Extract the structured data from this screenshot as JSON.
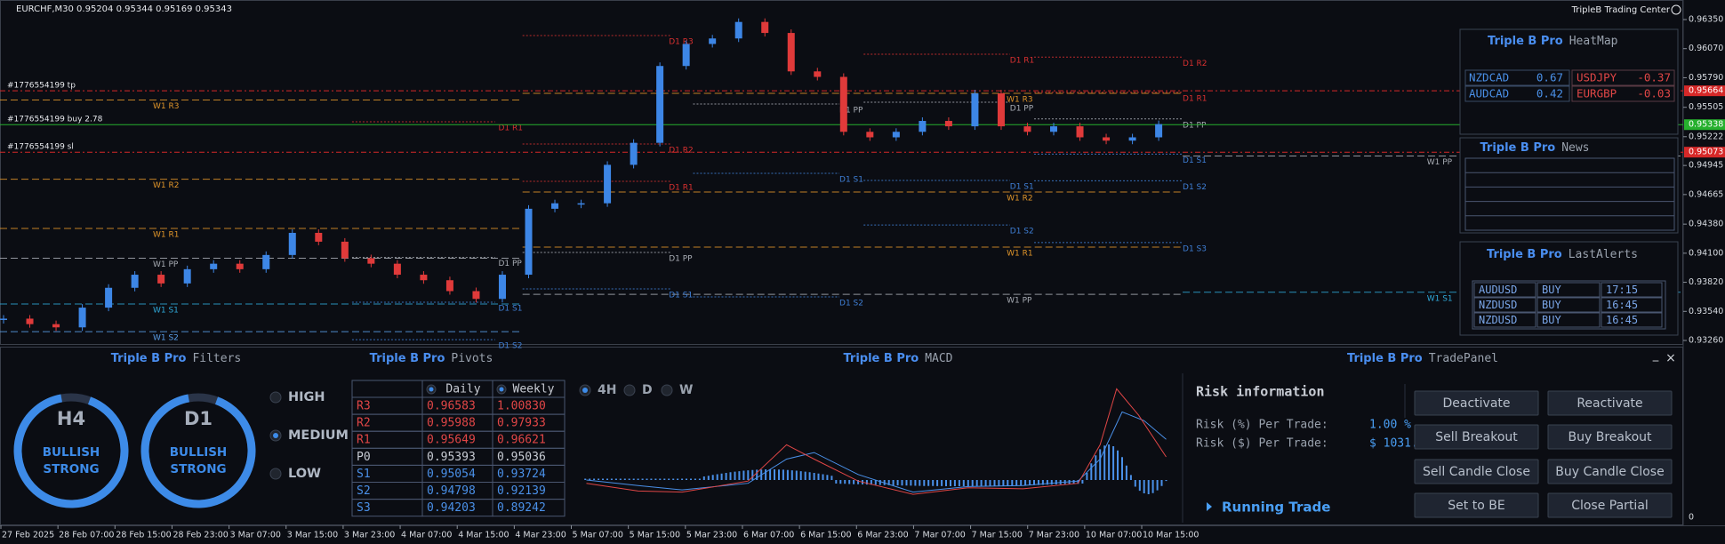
{
  "header": {
    "symbol_info": "EURCHF,M30  0.95204 0.95344 0.95169 0.95343",
    "app_title": "TripleB Trading Center"
  },
  "chart_data": {
    "type": "candlestick",
    "closes": [
      0.9347,
      0.93417,
      0.93386,
      0.93576,
      0.93767,
      0.93893,
      0.93809,
      0.93946,
      0.93999,
      0.93946,
      0.94083,
      0.94296,
      0.94211,
      0.94052,
      0.93999,
      0.93893,
      0.9384,
      0.93735,
      0.9366,
      0.93893,
      0.94528,
      0.94581,
      0.94581,
      0.94951,
      0.95163,
      0.95903,
      0.96115,
      0.96168,
      0.96327,
      0.96221,
      0.95851,
      0.95798,
      0.95269,
      0.95216,
      0.95269,
      0.95374,
      0.95322,
      0.95639,
      0.95322,
      0.95269,
      0.95322,
      0.95216,
      0.95184,
      0.95216,
      0.95343
    ],
    "up_color": "#3d86e6",
    "down_color": "#e03a3a",
    "ylim": [
      0.9326,
      0.9635
    ],
    "yticks": [
      {
        "value": 0.9635,
        "label": "0.96350"
      },
      {
        "value": 0.9607,
        "label": "0.96070"
      },
      {
        "value": 0.9579,
        "label": "0.95790"
      },
      0.95505,
      0.95222,
      0.94945,
      0.94665,
      {
        "value": 0.9438,
        "label": "0.94380"
      },
      {
        "value": 0.941,
        "label": "0.94100"
      },
      {
        "value": 0.9382,
        "label": "0.93820"
      },
      {
        "value": 0.9354,
        "label": "0.93540"
      },
      {
        "value": 0.9326,
        "label": "0.93260"
      }
    ],
    "orders": [
      {
        "label": "#1776554199 tp",
        "price": 0.95664,
        "color": "#d62828"
      },
      {
        "label": "#1776554199 buy 2.78",
        "price": 0.95338,
        "color": "#26b02e"
      },
      {
        "label": "#1776554199 sl",
        "price": 0.95073,
        "color": "#d62828"
      }
    ],
    "levels": [
      {
        "label": "W1 R3",
        "price": 0.95575,
        "color": "#e0952a"
      },
      {
        "label": "W1 R2",
        "price": 0.94813,
        "color": "#e0952a"
      },
      {
        "label": "W1 R1",
        "price": 0.94338,
        "color": "#e0952a"
      },
      {
        "label": "W1 PP",
        "price": 0.94052,
        "color": "#a8acb4"
      },
      {
        "label": "W1 S1",
        "price": 0.93611,
        "color": "#2fa8d8"
      },
      {
        "label": "W1 S2",
        "price": 0.93345,
        "color": "#5a9ee8"
      },
      {
        "label": "W1 R3",
        "price": 0.9564,
        "color": "#e0952a"
      },
      {
        "label": "W1 R2",
        "price": 0.94689,
        "color": "#e0952a"
      },
      {
        "label": "W1 R1",
        "price": 0.94159,
        "color": "#e0952a"
      },
      {
        "label": "W1 PP",
        "price": 0.93704,
        "color": "#a8acb4"
      },
      {
        "label": "W1 PP",
        "price": 0.95036,
        "color": "#a8acb4"
      },
      {
        "label": "W1 S1",
        "price": 0.93724,
        "color": "#2fa8d8"
      },
      {
        "label": "D1 R1",
        "price": 0.95366,
        "color": "#d83030"
      },
      {
        "label": "D1 PP",
        "price": 0.94059,
        "color": "#a8acb4"
      },
      {
        "label": "D1 S1",
        "price": 0.93628,
        "color": "#3f7fd6"
      },
      {
        "label": "D1 S2",
        "price": 0.93268,
        "color": "#3f7fd6"
      },
      {
        "label": "D1 R3",
        "price": 0.96196,
        "color": "#d83030"
      },
      {
        "label": "D1 R2",
        "price": 0.95152,
        "color": "#d83030"
      },
      {
        "label": "D1 R1",
        "price": 0.94792,
        "color": "#d83030"
      },
      {
        "label": "D1 PP",
        "price": 0.94107,
        "color": "#a8acb4"
      },
      {
        "label": "D1 S1",
        "price": 0.93756,
        "color": "#3f7fd6"
      },
      {
        "label": "D1 PP",
        "price": 0.95537,
        "color": "#a8acb4"
      },
      {
        "label": "D1 S1",
        "price": 0.94869,
        "color": "#3f7fd6"
      },
      {
        "label": "D1 S2",
        "price": 0.93679,
        "color": "#3f7fd6"
      },
      {
        "label": "D1 R1",
        "price": 0.96016,
        "color": "#d83030"
      },
      {
        "label": "D1 PP",
        "price": 0.95554,
        "color": "#a8acb4"
      },
      {
        "label": "D1 S1",
        "price": 0.94801,
        "color": "#3f7fd6"
      },
      {
        "label": "D1 S2",
        "price": 0.94372,
        "color": "#3f7fd6"
      },
      {
        "label": "D1 R2",
        "price": 0.95988,
        "color": "#d83030"
      },
      {
        "label": "D1 R1",
        "price": 0.95649,
        "color": "#d83030"
      },
      {
        "label": "D1 PP",
        "price": 0.95393,
        "color": "#a8acb4"
      },
      {
        "label": "D1 S1",
        "price": 0.95054,
        "color": "#3f7fd6"
      },
      {
        "label": "D1 S2",
        "price": 0.94798,
        "color": "#3f7fd6"
      },
      {
        "label": "D1 S3",
        "price": 0.94203,
        "color": "#3f7fd6"
      }
    ]
  },
  "time_axis": [
    "27 Feb 2025",
    "28 Feb 07:00",
    "28 Feb 15:00",
    "28 Feb 23:00",
    "3 Mar 07:00",
    "3 Mar 15:00",
    "3 Mar 23:00",
    "4 Mar 07:00",
    "4 Mar 15:00",
    "4 Mar 23:00",
    "5 Mar 07:00",
    "5 Mar 15:00",
    "5 Mar 23:00",
    "6 Mar 07:00",
    "6 Mar 15:00",
    "6 Mar 23:00",
    "7 Mar 07:00",
    "7 Mar 15:00",
    "7 Mar 23:00",
    "10 Mar 07:00",
    "10 Mar 15:00"
  ],
  "heatmap": {
    "title_brand": "Triple B Pro",
    "title": "HeatMap",
    "rows": [
      [
        "NZDCAD",
        "0.67",
        "USDJPY",
        "-0.37"
      ],
      [
        "AUDCAD",
        "0.42",
        "EURGBP",
        "-0.03"
      ]
    ]
  },
  "news": {
    "title_brand": "Triple B Pro",
    "title": "News"
  },
  "last_alerts": {
    "title_brand": "Triple B Pro",
    "title": "LastAlerts",
    "rows": [
      [
        "AUDUSD",
        "BUY",
        "17:15"
      ],
      [
        "NZDUSD",
        "BUY",
        "16:45"
      ],
      [
        "NZDUSD",
        "BUY",
        "16:45"
      ]
    ]
  },
  "filters": {
    "title_brand": "Triple B Pro",
    "title": "Filters",
    "gauges": [
      {
        "timeframe": "H4",
        "bias": "BULLISH",
        "strength": "STRONG"
      },
      {
        "timeframe": "D1",
        "bias": "BULLISH",
        "strength": "STRONG"
      }
    ],
    "options": [
      "HIGH",
      "MEDIUM",
      "LOW"
    ]
  },
  "pivots": {
    "title_brand": "Triple B Pro",
    "title": "Pivots",
    "columns": [
      "Daily",
      "Weekly"
    ],
    "rows": [
      [
        "R3",
        "0.96583",
        "1.00830"
      ],
      [
        "R2",
        "0.95988",
        "0.97933"
      ],
      [
        "R1",
        "0.95649",
        "0.96621"
      ],
      [
        "P0",
        "0.95393",
        "0.95036"
      ],
      [
        "S1",
        "0.95054",
        "0.93724"
      ],
      [
        "S2",
        "0.94798",
        "0.92139"
      ],
      [
        "S3",
        "0.94203",
        "0.89242"
      ]
    ]
  },
  "macd": {
    "title_brand": "Triple B Pro",
    "title": "MACD",
    "timeframes": [
      "4H",
      "D",
      "W"
    ],
    "zero_label": "0"
  },
  "trade_panel": {
    "title_brand": "Triple B Pro",
    "title": "TradePanel",
    "window_controls": [
      "_",
      "×"
    ],
    "risk_title": "Risk information",
    "risk_pct_label": "Risk (%) Per Trade:",
    "risk_pct_value": "1.00 %",
    "risk_usd_label": "Risk ($) Per Trade:",
    "risk_usd_value": "$ 1031.31",
    "running_trade": "Running Trade",
    "buttons": [
      [
        "Deactivate",
        "Reactivate"
      ],
      [
        "Sell Breakout",
        "Buy Breakout"
      ],
      [
        "Sell Candle Close",
        "Buy Candle Close"
      ],
      [
        "Set to BE",
        "Close Partial"
      ]
    ]
  }
}
